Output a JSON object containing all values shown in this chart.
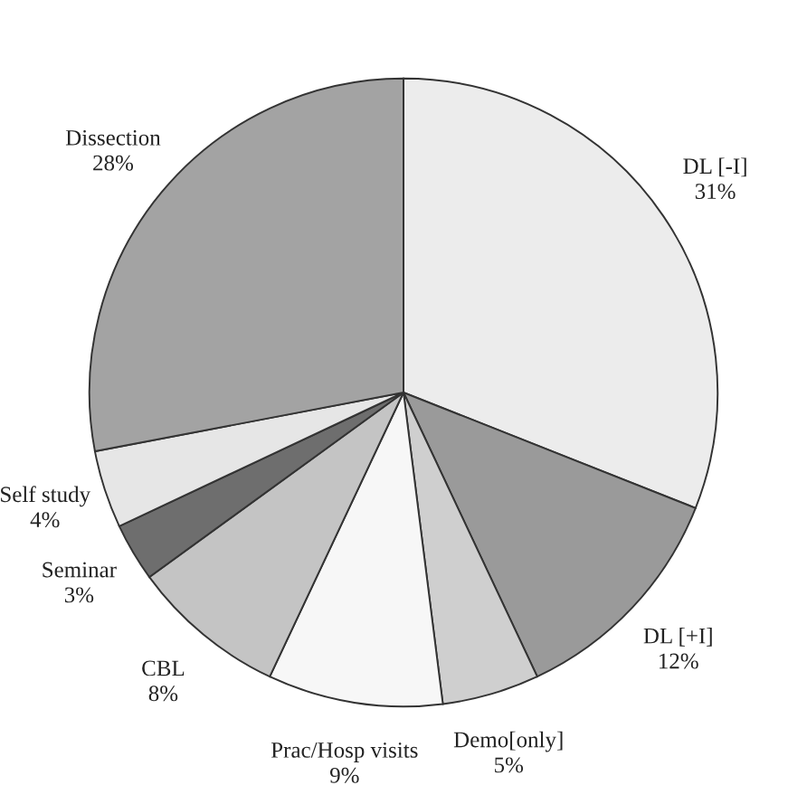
{
  "chart_data": {
    "type": "pie",
    "categories": [
      "DL [-I]",
      "DL [+I]",
      "Demo[only]",
      "Prac/Hosp visits",
      "CBL",
      "Seminar",
      "Self study",
      "Dissection"
    ],
    "values": [
      31,
      12,
      5,
      9,
      8,
      3,
      4,
      28
    ],
    "value_labels": [
      "31%",
      "12%",
      "5%",
      "9%",
      "8%",
      "3%",
      "4%",
      "28%"
    ],
    "colors": [
      "#ececec",
      "#9a9a9a",
      "#cfcfcf",
      "#f7f7f7",
      "#c4c4c4",
      "#6e6e6e",
      "#e6e6e6",
      "#a3a3a3"
    ]
  }
}
